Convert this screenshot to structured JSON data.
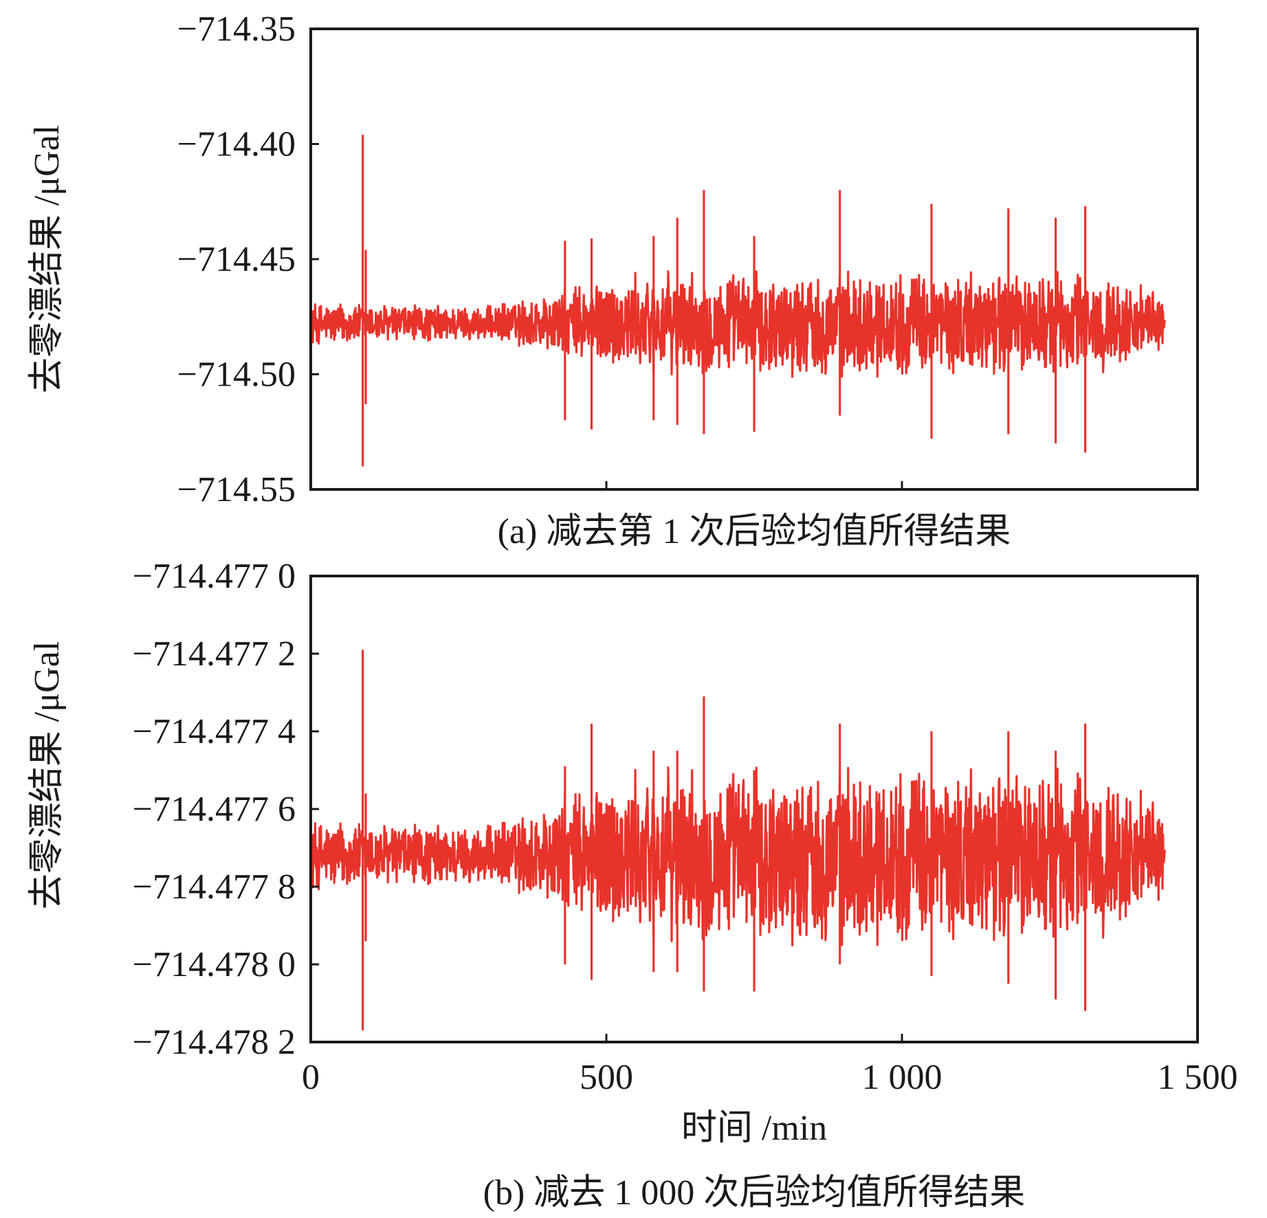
{
  "chart_data": [
    {
      "type": "line",
      "id": "a",
      "caption": "(a) 减去第 1 次后验均值所得结果",
      "ylabel": "去零漂结果 /μGal",
      "xlabel": "",
      "xlim": [
        0,
        1500
      ],
      "ylim": [
        -714.55,
        -714.35
      ],
      "x_ticks": [
        0,
        500,
        1000,
        1500
      ],
      "x_tick_labels": [
        "",
        "",
        "",
        ""
      ],
      "y_ticks": [
        -714.35,
        -714.4,
        -714.45,
        -714.5,
        -714.55
      ],
      "y_tick_labels": [
        "−714.35",
        "−714.40",
        "−714.45",
        "−714.50",
        "−714.55"
      ],
      "grid": false,
      "series": [
        {
          "color": "#e8332b",
          "x_range": [
            0,
            1445
          ],
          "center": -714.478,
          "envelope": [
            [
              0,
              0.01
            ],
            [
              300,
              0.008
            ],
            [
              400,
              0.014
            ],
            [
              500,
              0.022
            ],
            [
              700,
              0.024
            ],
            [
              1000,
              0.024
            ],
            [
              1300,
              0.024
            ],
            [
              1400,
              0.018
            ],
            [
              1445,
              0.012
            ]
          ],
          "spikes": [
            {
              "x": 88,
              "values": [
                -714.396,
                -714.54
              ]
            },
            {
              "x": 93,
              "values": [
                -714.446,
                -714.513
              ]
            },
            {
              "x": 430,
              "values": [
                -714.442,
                -714.52
              ]
            },
            {
              "x": 475,
              "values": [
                -714.441,
                -714.524
              ]
            },
            {
              "x": 580,
              "values": [
                -714.44,
                -714.52
              ]
            },
            {
              "x": 620,
              "values": [
                -714.432,
                -714.522
              ]
            },
            {
              "x": 665,
              "values": [
                -714.42,
                -714.526
              ]
            },
            {
              "x": 750,
              "values": [
                -714.44,
                -714.525
              ]
            },
            {
              "x": 895,
              "values": [
                -714.42,
                -714.518
              ]
            },
            {
              "x": 1050,
              "values": [
                -714.426,
                -714.528
              ]
            },
            {
              "x": 1180,
              "values": [
                -714.428,
                -714.526
              ]
            },
            {
              "x": 1260,
              "values": [
                -714.432,
                -714.53
              ]
            },
            {
              "x": 1310,
              "values": [
                -714.427,
                -714.534
              ]
            }
          ]
        }
      ]
    },
    {
      "type": "line",
      "id": "b",
      "caption": "(b) 减去 1 000 次后验均值所得结果",
      "ylabel": "去零漂结果 /μGal",
      "xlabel": "时间 /min",
      "xlim": [
        0,
        1500
      ],
      "ylim": [
        -714.4782,
        -714.477
      ],
      "x_ticks": [
        0,
        500,
        1000,
        1500
      ],
      "x_tick_labels": [
        "0",
        "500",
        "1 000",
        "1 500"
      ],
      "y_ticks": [
        -714.477,
        -714.4772,
        -714.4774,
        -714.4776,
        -714.4778,
        -714.478,
        -714.4782
      ],
      "y_tick_labels": [
        "−714.477 0",
        "−714.477 2",
        "−714.477 4",
        "−714.477 6",
        "−714.477 8",
        "−714.478 0",
        "−714.478 2"
      ],
      "grid": false,
      "series": [
        {
          "color": "#e8332b",
          "x_range": [
            0,
            1445
          ],
          "center": -714.47772,
          "envelope": [
            [
              0,
              0.0001
            ],
            [
              300,
              8e-05
            ],
            [
              400,
              0.00014
            ],
            [
              500,
              0.00022
            ],
            [
              700,
              0.00024
            ],
            [
              1000,
              0.00024
            ],
            [
              1300,
              0.00024
            ],
            [
              1400,
              0.00018
            ],
            [
              1445,
              0.00012
            ]
          ],
          "spikes": [
            {
              "x": 88,
              "values": [
                -714.47719,
                -714.47817
              ]
            },
            {
              "x": 93,
              "values": [
                -714.47756,
                -714.47794
              ]
            },
            {
              "x": 430,
              "values": [
                -714.47749,
                -714.478
              ]
            },
            {
              "x": 475,
              "values": [
                -714.47738,
                -714.47804
              ]
            },
            {
              "x": 580,
              "values": [
                -714.47745,
                -714.47802
              ]
            },
            {
              "x": 620,
              "values": [
                -714.47745,
                -714.47802
              ]
            },
            {
              "x": 665,
              "values": [
                -714.47731,
                -714.47807
              ]
            },
            {
              "x": 750,
              "values": [
                -714.4775,
                -714.47807
              ]
            },
            {
              "x": 895,
              "values": [
                -714.47738,
                -714.478
              ]
            },
            {
              "x": 1050,
              "values": [
                -714.4774,
                -714.47803
              ]
            },
            {
              "x": 1180,
              "values": [
                -714.4774,
                -714.47805
              ]
            },
            {
              "x": 1260,
              "values": [
                -714.47745,
                -714.47809
              ]
            },
            {
              "x": 1310,
              "values": [
                -714.47738,
                -714.47812
              ]
            }
          ]
        }
      ]
    }
  ]
}
